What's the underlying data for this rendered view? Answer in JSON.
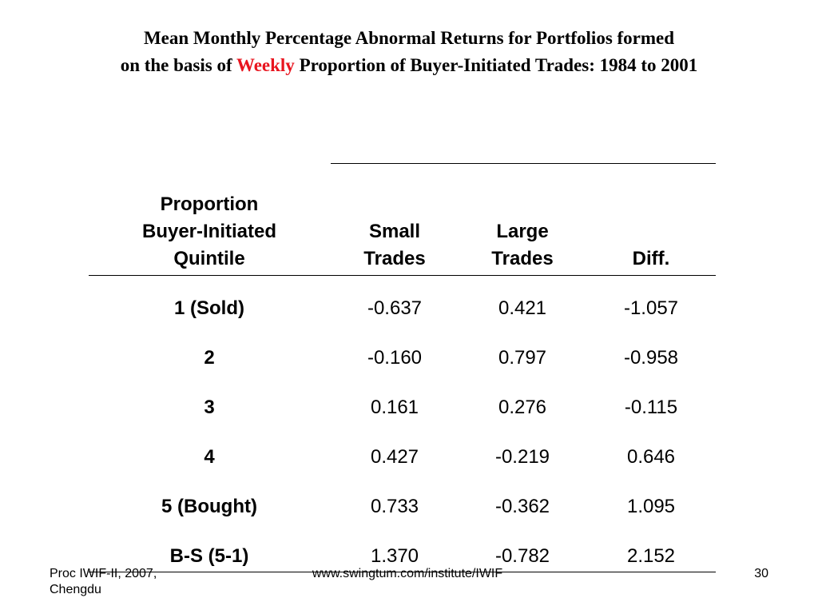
{
  "slide": {
    "title_line1": "Mean Monthly Percentage Abnormal Returns for Portfolios formed",
    "title_line2_pre": "on the basis of ",
    "title_line2_highlight": "Weekly",
    "title_line2_post": " Proportion of  Buyer-Initiated Trades: 1984 to 2001",
    "highlight_color": "#e8141e"
  },
  "table": {
    "headers": {
      "quintile_line1": "Proportion",
      "quintile_line2": "Buyer-Initiated",
      "quintile_line3": "Quintile",
      "small_line1": "Small",
      "small_line2": "Trades",
      "large_line1": "Large",
      "large_line2": "Trades",
      "diff": "Diff."
    },
    "rows": [
      {
        "label": "1 (Sold)",
        "small": "-0.637",
        "large": "0.421",
        "diff": "-1.057"
      },
      {
        "label": "2",
        "small": "-0.160",
        "large": "0.797",
        "diff": "-0.958"
      },
      {
        "label": "3",
        "small": "0.161",
        "large": "0.276",
        "diff": "-0.115"
      },
      {
        "label": "4",
        "small": "0.427",
        "large": "-0.219",
        "diff": "0.646"
      },
      {
        "label": "5 (Bought)",
        "small": "0.733",
        "large": "-0.362",
        "diff": "1.095"
      },
      {
        "label": "B-S (5-1)",
        "small": "1.370",
        "large": "-0.782",
        "diff": "2.152"
      }
    ]
  },
  "footer": {
    "left_line1": "Proc IWIF-II, 2007,",
    "left_line2": "Chengdu",
    "center": "www.swingtum.com/institute/IWIF",
    "page_number": "30"
  }
}
